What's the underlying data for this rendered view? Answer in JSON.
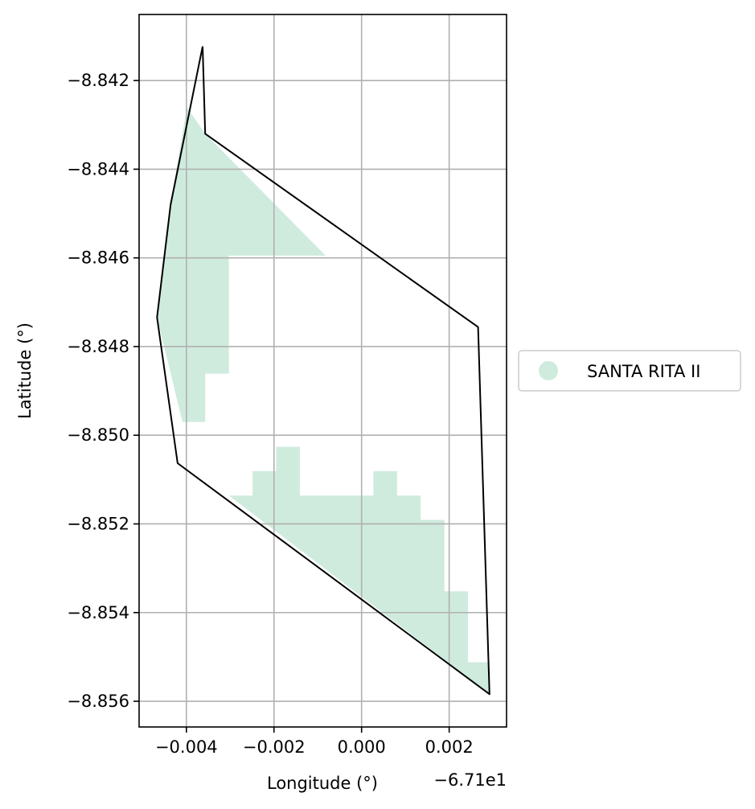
{
  "chart_data": {
    "type": "map",
    "xlabel": "Longitude (°)",
    "ylabel": "Latitude (°)",
    "x_offset_label": "−6.71e1",
    "x_offset": -67.1,
    "xlim": [
      -0.00508,
      0.00331
    ],
    "ylim": [
      -8.85658,
      -8.84051
    ],
    "x_ticks": [
      {
        "value": -0.004,
        "label": "−0.004"
      },
      {
        "value": -0.002,
        "label": "−0.002"
      },
      {
        "value": 0.0,
        "label": "0.000"
      },
      {
        "value": 0.002,
        "label": "0.002"
      }
    ],
    "y_ticks": [
      {
        "value": -8.842,
        "label": "−8.842"
      },
      {
        "value": -8.844,
        "label": "−8.844"
      },
      {
        "value": -8.846,
        "label": "−8.846"
      },
      {
        "value": -8.848,
        "label": "−8.848"
      },
      {
        "value": -8.85,
        "label": "−8.850"
      },
      {
        "value": -8.852,
        "label": "−8.852"
      },
      {
        "value": -8.854,
        "label": "−8.854"
      },
      {
        "value": -8.856,
        "label": "−8.856"
      }
    ],
    "grid": true,
    "legend": {
      "position": "right-center",
      "entries": [
        {
          "label": "SANTA RITA II",
          "color": "#cfebde"
        }
      ]
    },
    "fill_color": "#cfebde",
    "outline_color": "#000000",
    "outline_polygon": [
      [
        -0.00363,
        -8.84123
      ],
      [
        -0.00357,
        -8.8432
      ],
      [
        0.00266,
        -8.84756
      ],
      [
        0.00292,
        -8.85584
      ],
      [
        -0.0042,
        -8.85063
      ],
      [
        -0.00467,
        -8.84734
      ],
      [
        -0.00436,
        -8.8448
      ],
      [
        -0.00363,
        -8.84123
      ]
    ],
    "filled_regions": [
      [
        [
          -0.00357,
          -8.8432
        ],
        [
          -0.00082,
          -8.84595
        ],
        [
          -0.00303,
          -8.84595
        ],
        [
          -0.00303,
          -8.84861
        ],
        [
          -0.00357,
          -8.84861
        ],
        [
          -0.00357,
          -8.8497
        ],
        [
          -0.00409,
          -8.8497
        ],
        [
          -0.00467,
          -8.84734
        ],
        [
          -0.00436,
          -8.8448
        ],
        [
          -0.00399,
          -8.8426
        ]
      ],
      [
        [
          -0.00303,
          -8.85136
        ],
        [
          -0.00249,
          -8.85136
        ],
        [
          -0.00249,
          -8.85081
        ],
        [
          -0.00195,
          -8.85081
        ],
        [
          -0.00195,
          -8.85026
        ],
        [
          -0.00141,
          -8.85026
        ],
        [
          -0.00141,
          -8.85136
        ],
        [
          0.00027,
          -8.85136
        ],
        [
          0.00027,
          -8.85081
        ],
        [
          0.00081,
          -8.85081
        ],
        [
          0.00081,
          -8.85136
        ],
        [
          0.00135,
          -8.85136
        ],
        [
          0.00135,
          -8.85191
        ],
        [
          0.00189,
          -8.85191
        ],
        [
          0.00189,
          -8.85352
        ],
        [
          0.00243,
          -8.85352
        ],
        [
          0.00243,
          -8.85512
        ],
        [
          0.00288,
          -8.85512
        ],
        [
          0.00292,
          -8.85584
        ]
      ]
    ]
  }
}
